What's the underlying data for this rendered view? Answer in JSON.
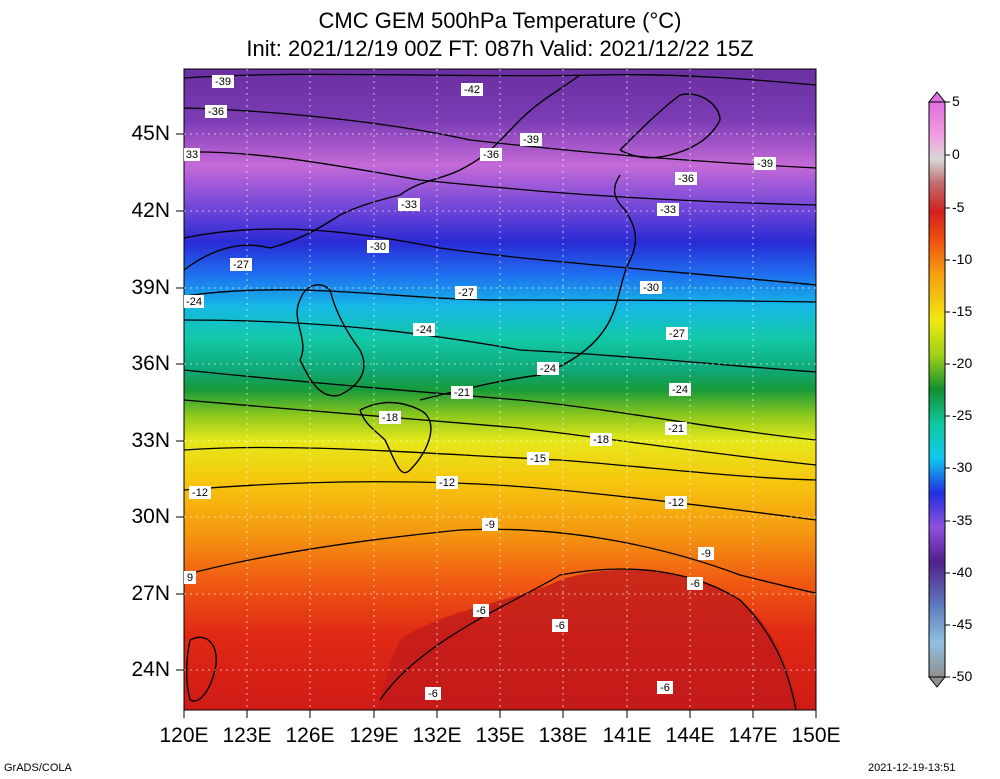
{
  "title": {
    "line1": "CMC GEM 500hPa Temperature (°C)",
    "line2": "Init: 2021/12/19 00Z  FT: 087h  Valid: 2021/12/22 15Z"
  },
  "axes": {
    "lat_labels": [
      "45N",
      "42N",
      "39N",
      "36N",
      "33N",
      "30N",
      "27N",
      "24N"
    ],
    "lon_labels": [
      "120E",
      "123E",
      "126E",
      "129E",
      "132E",
      "135E",
      "138E",
      "141E",
      "144E",
      "147E",
      "150E"
    ],
    "lat_range": [
      22.5,
      47.6
    ],
    "lon_range": [
      120,
      150
    ]
  },
  "colorbar": {
    "labels": [
      "5",
      "0",
      "-5",
      "-10",
      "-15",
      "-20",
      "-25",
      "-30",
      "-35",
      "-40",
      "-45",
      "-50"
    ],
    "range": [
      -50,
      5
    ]
  },
  "contour_labels": [
    {
      "text": "-39"
    },
    {
      "text": "-42"
    },
    {
      "text": "-36"
    },
    {
      "text": "-39"
    },
    {
      "text": "-36"
    },
    {
      "text": "-39"
    },
    {
      "text": "33"
    },
    {
      "text": "-36"
    },
    {
      "text": "-33"
    },
    {
      "text": "-33"
    },
    {
      "text": "-30"
    },
    {
      "text": "-27"
    },
    {
      "text": "-27"
    },
    {
      "text": "-30"
    },
    {
      "text": "-24"
    },
    {
      "text": "-24"
    },
    {
      "text": "-27"
    },
    {
      "text": "-24"
    },
    {
      "text": "-24"
    },
    {
      "text": "-21"
    },
    {
      "text": "-18"
    },
    {
      "text": "-21"
    },
    {
      "text": "-18"
    },
    {
      "text": "-15"
    },
    {
      "text": "-12"
    },
    {
      "text": "-12"
    },
    {
      "text": "-12"
    },
    {
      "text": "-9"
    },
    {
      "text": "-9"
    },
    {
      "text": "9"
    },
    {
      "text": "-6"
    },
    {
      "text": "-6"
    },
    {
      "text": "-6"
    },
    {
      "text": "-6"
    },
    {
      "text": "-6"
    }
  ],
  "footer": {
    "left": "GrADS/COLA",
    "right": "2021-12-19-13:51"
  }
}
